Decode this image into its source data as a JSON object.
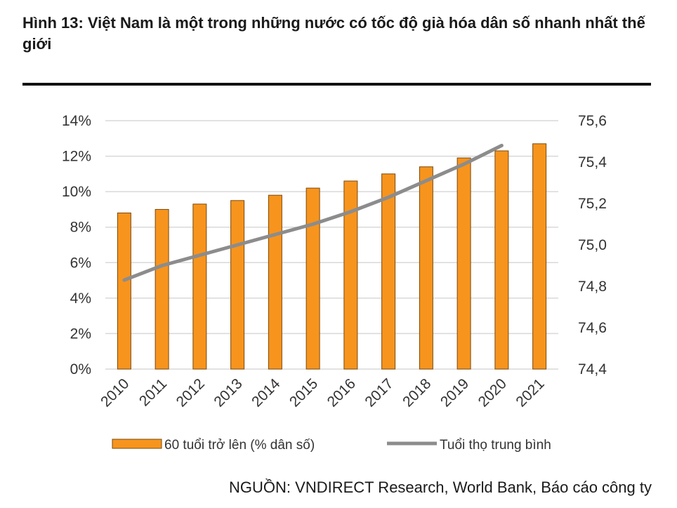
{
  "title": "Hình 13: Việt Nam là một trong những nước có tốc độ già hóa dân số nhanh nhất thế giới",
  "source": "NGUỒN: VNDIRECT Research, World Bank, Báo cáo công ty",
  "colors": {
    "bar": "#F7941D",
    "bar_stroke": "#7a4a10",
    "line": "#8c8c8c",
    "grid": "#d9d9d9"
  },
  "chart_data": {
    "type": "bar+line",
    "categories": [
      "2010",
      "2011",
      "2012",
      "2013",
      "2014",
      "2015",
      "2016",
      "2017",
      "2018",
      "2019",
      "2020",
      "2021"
    ],
    "series": [
      {
        "name": "60 tuổi trở lên (% dân số)",
        "type": "bar",
        "axis": "left",
        "values": [
          8.8,
          9.0,
          9.3,
          9.5,
          9.8,
          10.2,
          10.6,
          11.0,
          11.4,
          11.9,
          12.3,
          12.7
        ]
      },
      {
        "name": "Tuổi thọ trung bình",
        "type": "line",
        "axis": "right",
        "values": [
          74.83,
          74.9,
          74.95,
          75.0,
          75.05,
          75.1,
          75.16,
          75.23,
          75.31,
          75.39,
          75.48,
          null
        ]
      }
    ],
    "y_left": {
      "ticks": [
        "0%",
        "2%",
        "4%",
        "6%",
        "8%",
        "10%",
        "12%",
        "14%"
      ],
      "min": 0,
      "max": 14
    },
    "y_right": {
      "ticks": [
        "74,4",
        "74,6",
        "74,8",
        "75,0",
        "75,2",
        "75,4",
        "75,6"
      ],
      "min": 74.4,
      "max": 75.6
    },
    "grid": true,
    "legend_position": "bottom"
  }
}
